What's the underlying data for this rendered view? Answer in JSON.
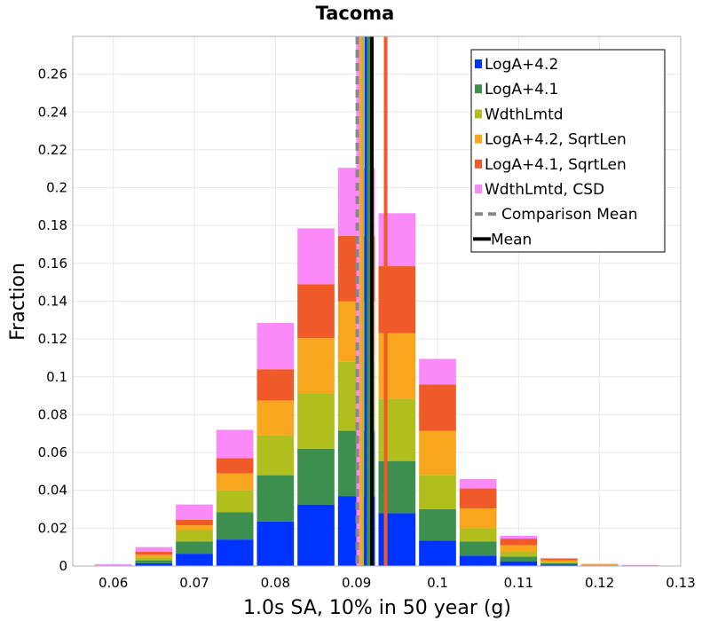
{
  "chart_data": {
    "type": "bar",
    "stacked": true,
    "title": "Tacoma",
    "xlabel": "1.0s SA, 10% in 50 year (g)",
    "ylabel": "Fraction",
    "xlim": [
      0.055,
      0.13
    ],
    "ylim": [
      0,
      0.28
    ],
    "grid": true,
    "legend_position": "top-right",
    "bin_width": 0.005,
    "x": [
      0.06,
      0.065,
      0.07,
      0.075,
      0.08,
      0.085,
      0.09,
      0.095,
      0.1,
      0.105,
      0.11,
      0.115,
      0.12,
      0.125,
      0.13
    ],
    "x_ticks": [
      "0.06",
      "0.07",
      "0.08",
      "0.09",
      "0.1",
      "0.11",
      "0.12",
      "0.13"
    ],
    "y_ticks": [
      "0",
      "0.02",
      "0.04",
      "0.06",
      "0.08",
      "0.1",
      "0.12",
      "0.14",
      "0.16",
      "0.18",
      "0.2",
      "0.22",
      "0.24",
      "0.26"
    ],
    "series": [
      {
        "name": "LogA+4.2",
        "color": "#0033ff",
        "values": [
          0.0001,
          0.0015,
          0.0065,
          0.014,
          0.0235,
          0.0325,
          0.037,
          0.028,
          0.0135,
          0.0055,
          0.0025,
          0.0007,
          0.0002,
          0.0001,
          0.0
        ]
      },
      {
        "name": "LogA+4.1",
        "color": "#3d8f4f",
        "values": [
          0.0001,
          0.0015,
          0.0065,
          0.0145,
          0.0245,
          0.0295,
          0.0345,
          0.0275,
          0.0165,
          0.0075,
          0.0025,
          0.0008,
          0.0002,
          0.0001,
          0.0
        ]
      },
      {
        "name": "WdthLmtd",
        "color": "#b0be1e",
        "values": [
          0.0001,
          0.0015,
          0.006,
          0.0115,
          0.021,
          0.029,
          0.0365,
          0.033,
          0.018,
          0.007,
          0.0025,
          0.0008,
          0.0002,
          0.0001,
          0.0
        ]
      },
      {
        "name": "LogA+4.2, SqrtLen",
        "color": "#f8a61e",
        "values": [
          0.0001,
          0.0015,
          0.0025,
          0.009,
          0.0185,
          0.0295,
          0.032,
          0.0345,
          0.0235,
          0.0105,
          0.0035,
          0.0007,
          0.0002,
          0.0001,
          0.0
        ]
      },
      {
        "name": "LogA+4.1, SqrtLen",
        "color": "#f05a28",
        "values": [
          0.0001,
          0.0015,
          0.003,
          0.008,
          0.0165,
          0.0285,
          0.0345,
          0.0355,
          0.0245,
          0.0105,
          0.0035,
          0.0008,
          0.0002,
          0.0001,
          0.0
        ]
      },
      {
        "name": "WdthLmtd, CSD",
        "color": "#fb8af8",
        "values": [
          0.0005,
          0.0025,
          0.008,
          0.015,
          0.0245,
          0.0295,
          0.036,
          0.028,
          0.0135,
          0.005,
          0.0015,
          0.0005,
          0.0002,
          0.0001,
          0.0
        ]
      }
    ],
    "mean_lines": [
      {
        "name": "LogA+4.2",
        "x": 0.0912,
        "color": "#0033ff"
      },
      {
        "name": "LogA+4.1",
        "x": 0.0915,
        "color": "#3d8f4f"
      },
      {
        "name": "WdthLmtd",
        "x": 0.0907,
        "color": "#b0be1e"
      },
      {
        "name": "LogA+4.2, SqrtLen",
        "x": 0.0905,
        "color": "#f8a61e"
      },
      {
        "name": "LogA+4.1, SqrtLen",
        "x": 0.0936,
        "color": "#f05a28"
      },
      {
        "name": "WdthLmtd, CSD",
        "x": 0.0902,
        "color": "#fb8af8"
      },
      {
        "name": "Comparison Mean",
        "x": 0.0901,
        "color": "#888888",
        "dashed": true
      },
      {
        "name": "Mean",
        "x": 0.0919,
        "color": "#000000"
      }
    ],
    "legend": [
      {
        "label": "LogA+4.2",
        "kind": "swatch",
        "color": "#0033ff"
      },
      {
        "label": "LogA+4.1",
        "kind": "swatch",
        "color": "#3d8f4f"
      },
      {
        "label": "WdthLmtd",
        "kind": "swatch",
        "color": "#b0be1e"
      },
      {
        "label": "LogA+4.2, SqrtLen",
        "kind": "swatch",
        "color": "#f8a61e"
      },
      {
        "label": "LogA+4.1, SqrtLen",
        "kind": "swatch",
        "color": "#f05a28"
      },
      {
        "label": "WdthLmtd, CSD",
        "kind": "swatch",
        "color": "#fb8af8"
      },
      {
        "label": "Comparison Mean",
        "kind": "dashed-line",
        "color": "#888888"
      },
      {
        "label": "Mean",
        "kind": "line",
        "color": "#000000"
      }
    ]
  }
}
